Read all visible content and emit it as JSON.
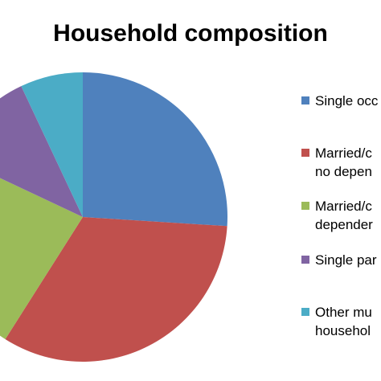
{
  "chart_data": {
    "type": "pie",
    "title": "Household composition",
    "categories": [
      "Single occ",
      "Married/c\nno depen",
      "Married/c\ndepender",
      "Single par",
      "Other mu\nhousehol"
    ],
    "values": [
      26,
      33,
      23,
      11,
      7
    ],
    "colors": [
      "#4f81bd",
      "#c0504d",
      "#9bbb59",
      "#8064a2",
      "#4bacc6"
    ],
    "legend": "right"
  }
}
